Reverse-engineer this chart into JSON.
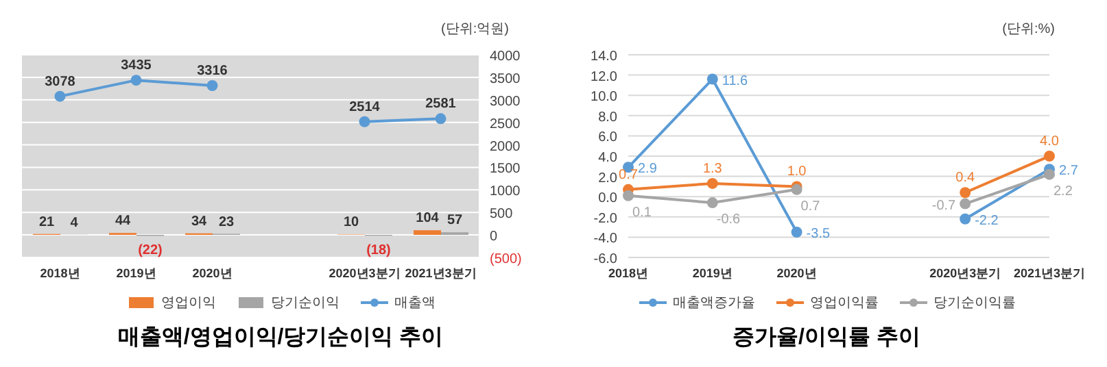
{
  "chart_data": [
    {
      "type": "bar",
      "title": "매출액/영업이익/당기순이익 추이",
      "annotations": [
        "(단위:억원)"
      ],
      "categories": [
        "2018년",
        "2019년",
        "2020년",
        null,
        "2020년3분기",
        "2021년3분기"
      ],
      "series": [
        {
          "name": "영업이익",
          "axis": "y2",
          "color": "#ed7d31",
          "values": [
            21,
            44,
            34,
            null,
            10,
            104
          ],
          "value_labels": [
            "21",
            "44",
            "34",
            null,
            "10",
            "104"
          ]
        },
        {
          "name": "당기순이익",
          "axis": "y2",
          "color": "#a5a5a5",
          "values": [
            4,
            -22,
            23,
            null,
            -18,
            57
          ],
          "value_labels": [
            "4",
            "(22)",
            "23",
            null,
            "(18)",
            "57"
          ]
        },
        {
          "name": "매출액",
          "type": "line",
          "axis": "y2",
          "color": "#5b9bd5",
          "values": [
            3078,
            3435,
            3316,
            null,
            2514,
            2581
          ],
          "value_labels": [
            "3078",
            "3435",
            "3316",
            null,
            "2514",
            "2581"
          ]
        }
      ],
      "y2lim": [
        -500,
        4000
      ],
      "y2ticks": [
        {
          "value": -500,
          "label": "(500)"
        },
        0,
        500,
        1000,
        1500,
        2000,
        2500,
        3000,
        3500,
        4000
      ],
      "grid": "y",
      "legend": "bottom",
      "marker": "circle"
    },
    {
      "type": "line",
      "title": "증가율/이익률 추이",
      "annotations": [
        "(단위:%)"
      ],
      "categories": [
        "2018년",
        "2019년",
        "2020년",
        null,
        "2020년3분기",
        "2021년3분기"
      ],
      "series": [
        {
          "name": "매출액증가율",
          "color": "#5b9bd5",
          "values": [
            2.9,
            11.6,
            -3.5,
            null,
            -2.2,
            2.7
          ],
          "value_labels": [
            "2.9",
            "11.6",
            "-3.5",
            null,
            "-2.2",
            "2.7"
          ]
        },
        {
          "name": "영업이익률",
          "color": "#ed7d31",
          "values": [
            0.7,
            1.3,
            1.0,
            null,
            0.4,
            4.0
          ],
          "value_labels": [
            "0.7",
            "1.3",
            "1.0",
            null,
            "0.4",
            "4.0"
          ]
        },
        {
          "name": "당기순이익률",
          "color": "#a5a5a5",
          "values": [
            0.1,
            -0.6,
            0.7,
            null,
            -0.7,
            2.2
          ],
          "value_labels": [
            "0.1",
            "-0.6",
            "0.7",
            null,
            "-0.7",
            "2.2"
          ]
        }
      ],
      "ylim": [
        -6,
        14
      ],
      "yticks": [
        {
          "value": -6,
          "label": "-6.0"
        },
        {
          "value": -4,
          "label": "-4.0"
        },
        {
          "value": -2,
          "label": "-2.0"
        },
        {
          "value": 0,
          "label": "0.0"
        },
        {
          "value": 2,
          "label": "2.0"
        },
        {
          "value": 4,
          "label": "4.0"
        },
        {
          "value": 6,
          "label": "6.0"
        },
        {
          "value": 8,
          "label": "8.0"
        },
        {
          "value": 10,
          "label": "10.0"
        },
        {
          "value": 12,
          "label": "12.0"
        },
        {
          "value": 14,
          "label": "14.0"
        }
      ],
      "grid": "y",
      "legend": "bottom",
      "marker": "circle"
    }
  ]
}
